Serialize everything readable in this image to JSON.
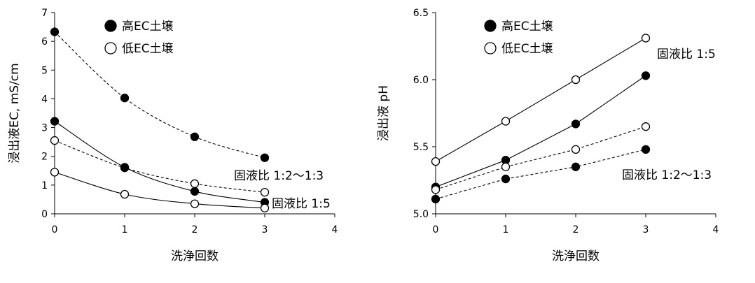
{
  "chart_data": [
    {
      "type": "scatter",
      "xlabel": "洗浄回数",
      "ylabel": "浸出液EC, mS/cm",
      "xlim": [
        0,
        4
      ],
      "ylim": [
        0,
        7
      ],
      "xticks": [
        "0",
        "1",
        "2",
        "3",
        "4"
      ],
      "yticks": [
        "0",
        "1",
        "2",
        "3",
        "4",
        "5",
        "6",
        "7"
      ],
      "legend": [
        "高EC土壌",
        "低EC土壌"
      ],
      "legend_position": "top-left",
      "grid": false,
      "annotations": [
        "固液比 1:2～1:3",
        "固液比 1:5"
      ],
      "series": [
        {
          "name": "高EC土壌",
          "ratio": "固液比 1:2～1:3",
          "marker": "filled",
          "line": "dashed",
          "x": [
            0,
            1,
            2,
            3
          ],
          "y": [
            6.33,
            4.03,
            2.68,
            1.95
          ]
        },
        {
          "name": "低EC土壌",
          "ratio": "固液比 1:2～1:3",
          "marker": "open",
          "line": "dashed",
          "x": [
            0,
            1,
            2,
            3
          ],
          "y": [
            2.55,
            1.6,
            1.05,
            0.75
          ]
        },
        {
          "name": "高EC土壌",
          "ratio": "固液比 1:5",
          "marker": "filled",
          "line": "solid",
          "x": [
            0,
            1,
            2,
            3
          ],
          "y": [
            3.22,
            1.62,
            0.78,
            0.4
          ]
        },
        {
          "name": "低EC土壌",
          "ratio": "固液比 1:5",
          "marker": "open",
          "line": "solid",
          "x": [
            0,
            1,
            2,
            3
          ],
          "y": [
            1.45,
            0.68,
            0.35,
            0.2
          ]
        }
      ]
    },
    {
      "type": "scatter",
      "xlabel": "洗浄回数",
      "ylabel": "浸出液 pH",
      "xlim": [
        0,
        4
      ],
      "ylim": [
        5.0,
        6.5
      ],
      "xticks": [
        "0",
        "1",
        "2",
        "3",
        "4"
      ],
      "yticks": [
        "5.0",
        "5.5",
        "6.0",
        "6.5"
      ],
      "legend": [
        "高EC土壌",
        "低EC土壌"
      ],
      "legend_position": "top-left",
      "grid": false,
      "annotations": [
        "固液比 1:5",
        "固液比 1:2～1:3"
      ],
      "series": [
        {
          "name": "低EC土壌",
          "ratio": "固液比 1:5",
          "marker": "open",
          "line": "solid",
          "x": [
            0,
            1,
            2,
            3
          ],
          "y": [
            5.39,
            5.69,
            6.0,
            6.31
          ]
        },
        {
          "name": "高EC土壌",
          "ratio": "固液比 1:5",
          "marker": "filled",
          "line": "solid",
          "x": [
            0,
            1,
            2,
            3
          ],
          "y": [
            5.2,
            5.4,
            5.67,
            6.03
          ]
        },
        {
          "name": "低EC土壌",
          "ratio": "固液比 1:2～1:3",
          "marker": "open",
          "line": "dashed",
          "x": [
            0,
            1,
            2,
            3
          ],
          "y": [
            5.18,
            5.35,
            5.48,
            5.65
          ]
        },
        {
          "name": "高EC土壌",
          "ratio": "固液比 1:2～1:3",
          "marker": "filled",
          "line": "dashed",
          "x": [
            0,
            1,
            2,
            3
          ],
          "y": [
            5.11,
            5.26,
            5.35,
            5.48
          ]
        }
      ]
    }
  ]
}
